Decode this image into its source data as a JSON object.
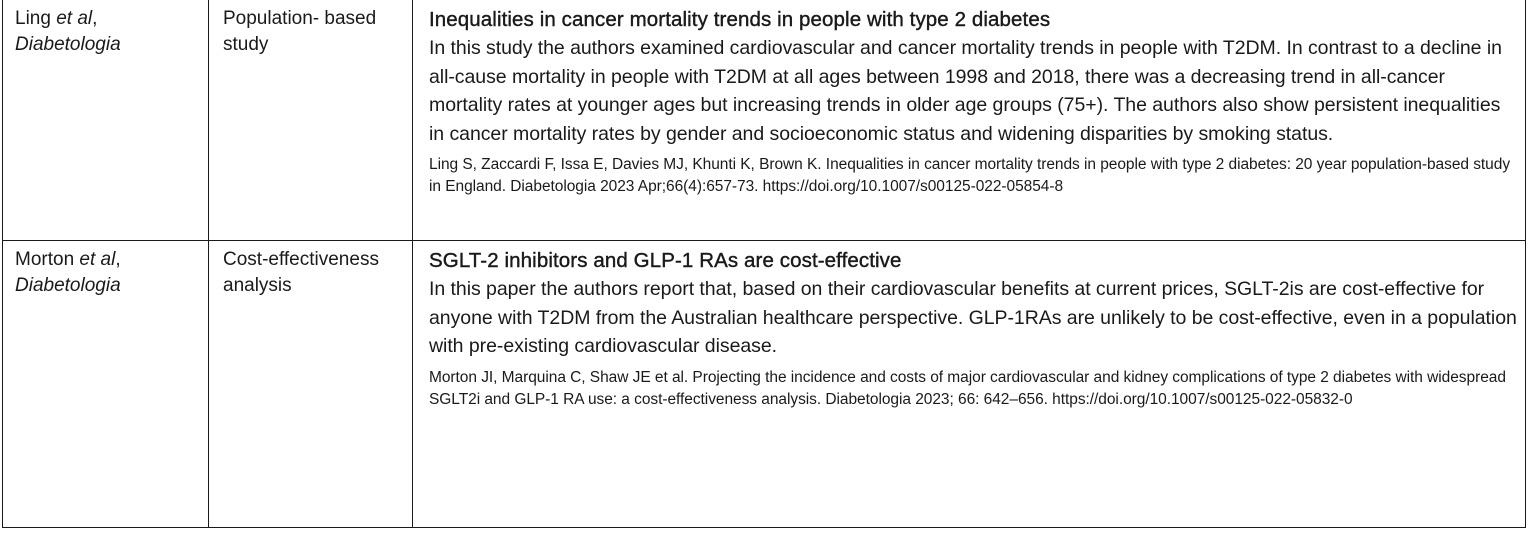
{
  "rows": [
    {
      "author_name": "Ling",
      "author_etal": "et al",
      "author_sep": ",",
      "journal": "Diabetologia",
      "study_type": "Population- based study",
      "title": "Inequalities in cancer mortality trends in people with type 2 diabetes",
      "summary": "In this study the authors examined cardiovascular and cancer mortality trends in people with T2DM. In contrast to a decline in all-cause mortality in people with T2DM at all ages between 1998 and 2018, there was a decreasing trend in all-cancer mortality rates at younger ages but increasing trends in older age groups (75+). The authors also show persistent inequalities in cancer mortality rates by gender and socioeconomic status and widening disparities by smoking status.",
      "reference": "Ling S, Zaccardi F, Issa E, Davies MJ, Khunti K, Brown K. Inequalities in cancer mortality trends in people with type 2 diabetes: 20 year population-based study in England. Diabetologia 2023 Apr;66(4):657-73. https://doi.org/10.1007/s00125-022-05854-8"
    },
    {
      "author_name": "Morton",
      "author_etal": "et al",
      "author_sep": ",",
      "journal": "Diabetologia",
      "study_type": "Cost-effectiveness analysis",
      "title": "SGLT-2 inhibitors and GLP-1 RAs are cost-effective",
      "summary": "In this paper the authors report that, based on their cardiovascular benefits at current prices, SGLT-2is are cost-effective for anyone with T2DM from the Australian healthcare perspective. GLP-1RAs are unlikely to be cost-effective, even in a population with pre-existing cardiovascular disease.",
      "reference": "Morton JI, Marquina C, Shaw JE et al. Projecting the incidence and costs of major cardiovascular and kidney complications of type 2 diabetes with widespread SGLT2i and GLP-1 RA use: a cost-effectiveness analysis. Diabetologia 2023; 66: 642–656. https://doi.org/10.1007/s00125-022-05832-0"
    }
  ]
}
